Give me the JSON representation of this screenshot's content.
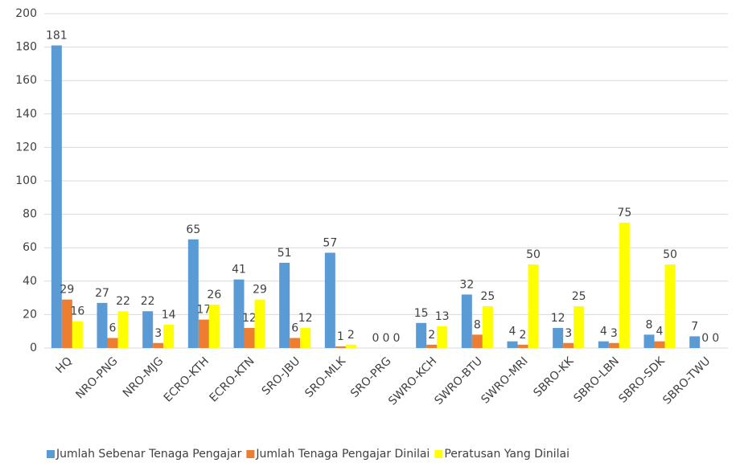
{
  "chart_data": {
    "type": "bar",
    "categories": [
      "HQ",
      "NRO-PNG",
      "NRO-MJG",
      "ECRO-KTH",
      "ECRO-KTN",
      "SRO-JBU",
      "SRO-MLK",
      "SRO-PRG",
      "SWRO-KCH",
      "SWRO-BTU",
      "SWRO-MRI",
      "SBRO-KK",
      "SBRO-LBN",
      "SBRO-SDK",
      "SBRO-TWU"
    ],
    "series": [
      {
        "name": "Jumlah Sebenar Tenaga Pengajar",
        "color": "#5b9bd5",
        "values": [
          181,
          27,
          22,
          65,
          41,
          51,
          57,
          0,
          15,
          32,
          4,
          12,
          4,
          8,
          7
        ]
      },
      {
        "name": "Jumlah Tenaga Pengajar Dinilai",
        "color": "#ed7d31",
        "values": [
          29,
          6,
          3,
          17,
          12,
          6,
          1,
          0,
          2,
          8,
          2,
          3,
          3,
          4,
          0
        ]
      },
      {
        "name": "Peratusan Yang Dinilai",
        "color": "#ffff00",
        "values": [
          16,
          22,
          14,
          26,
          29,
          12,
          2,
          0,
          13,
          25,
          50,
          25,
          75,
          50,
          0
        ]
      }
    ],
    "ylim": [
      0,
      200
    ],
    "yticks": [
      0,
      20,
      40,
      60,
      80,
      100,
      120,
      140,
      160,
      180,
      200
    ],
    "grid": true,
    "legend": "bottom"
  }
}
